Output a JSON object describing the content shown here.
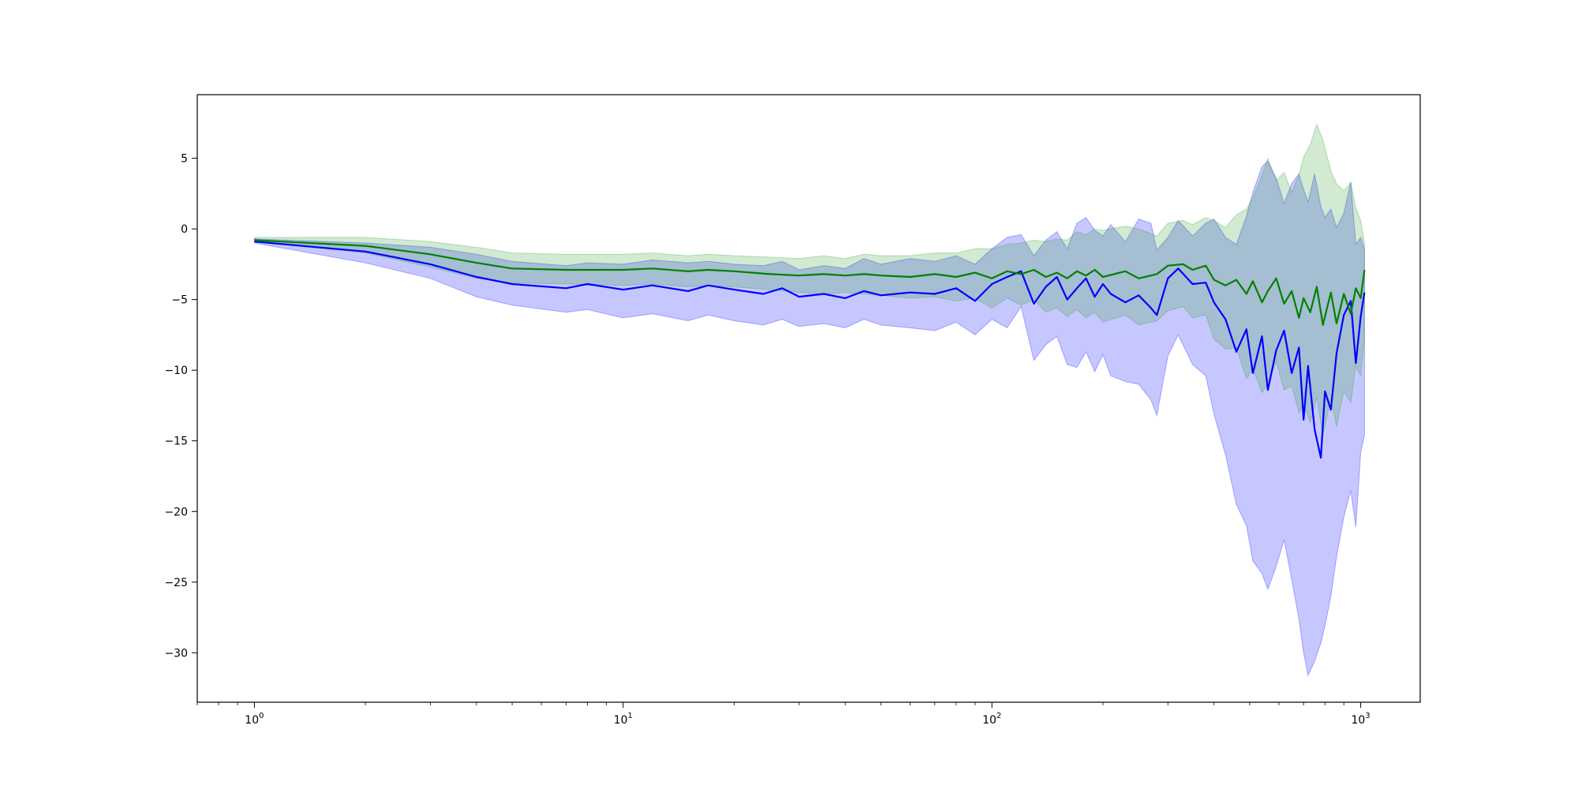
{
  "chart_data": {
    "type": "line",
    "title": "",
    "xlabel": "",
    "ylabel": "",
    "xscale": "log",
    "xlim": [
      0.7,
      1450
    ],
    "ylim": [
      -33.5,
      9.5
    ],
    "grid": false,
    "legend": "none",
    "x_ticks": [
      {
        "value": 1,
        "base": "10",
        "exp": "0"
      },
      {
        "value": 10,
        "base": "10",
        "exp": "1"
      },
      {
        "value": 100,
        "base": "10",
        "exp": "2"
      },
      {
        "value": 1000,
        "base": "10",
        "exp": "3"
      }
    ],
    "y_ticks": [
      {
        "value": 5,
        "label": "5"
      },
      {
        "value": 0,
        "label": "0"
      },
      {
        "value": -5,
        "label": "−5"
      },
      {
        "value": -10,
        "label": "−10"
      },
      {
        "value": -15,
        "label": "−15"
      },
      {
        "value": -20,
        "label": "−20"
      },
      {
        "value": -25,
        "label": "−25"
      },
      {
        "value": -30,
        "label": "−30"
      }
    ],
    "series": [
      {
        "color": "#0000ff",
        "band_color": "#0000ff",
        "points": [
          [
            1,
            -0.9,
            -1.0,
            -0.7
          ],
          [
            2,
            -1.6,
            -2.4,
            -1.0
          ],
          [
            3,
            -2.5,
            -3.5,
            -1.3
          ],
          [
            4,
            -3.4,
            -4.8,
            -1.8
          ],
          [
            5,
            -3.9,
            -5.4,
            -2.3
          ],
          [
            7,
            -4.2,
            -5.9,
            -2.6
          ],
          [
            8,
            -3.9,
            -5.7,
            -2.4
          ],
          [
            10,
            -4.3,
            -6.3,
            -2.5
          ],
          [
            12,
            -4.0,
            -6.0,
            -2.2
          ],
          [
            15,
            -4.4,
            -6.5,
            -2.4
          ],
          [
            17,
            -4.0,
            -6.1,
            -2.3
          ],
          [
            20,
            -4.3,
            -6.5,
            -2.5
          ],
          [
            24,
            -4.6,
            -6.8,
            -2.6
          ],
          [
            27,
            -4.2,
            -6.4,
            -2.3
          ],
          [
            30,
            -4.8,
            -6.9,
            -2.9
          ],
          [
            35,
            -4.6,
            -6.7,
            -2.6
          ],
          [
            40,
            -4.9,
            -7.0,
            -2.8
          ],
          [
            45,
            -4.4,
            -6.4,
            -2.1
          ],
          [
            50,
            -4.7,
            -6.8,
            -2.5
          ],
          [
            60,
            -4.5,
            -7.0,
            -2.1
          ],
          [
            70,
            -4.6,
            -7.2,
            -2.3
          ],
          [
            80,
            -4.2,
            -6.6,
            -1.9
          ],
          [
            90,
            -5.1,
            -7.5,
            -2.5
          ],
          [
            100,
            -3.9,
            -6.4,
            -1.4
          ],
          [
            110,
            -3.4,
            -7.0,
            -0.6
          ],
          [
            120,
            -3.0,
            -5.5,
            -0.4
          ],
          [
            130,
            -5.3,
            -9.3,
            -1.9
          ],
          [
            140,
            -4.1,
            -8.2,
            -0.8
          ],
          [
            150,
            -3.4,
            -7.6,
            -0.2
          ],
          [
            160,
            -5.0,
            -9.6,
            -1.4
          ],
          [
            170,
            -4.2,
            -9.8,
            0.4
          ],
          [
            180,
            -3.5,
            -8.7,
            0.8
          ],
          [
            190,
            -4.8,
            -10.1,
            -0.1
          ],
          [
            200,
            -3.9,
            -8.9,
            -0.5
          ],
          [
            210,
            -4.6,
            -10.4,
            0.3
          ],
          [
            230,
            -5.2,
            -10.8,
            -0.9
          ],
          [
            250,
            -4.7,
            -11.0,
            0.7
          ],
          [
            270,
            -5.6,
            -12.1,
            0.4
          ],
          [
            280,
            -6.1,
            -13.2,
            -1.5
          ],
          [
            300,
            -3.5,
            -9.0,
            -0.6
          ],
          [
            320,
            -2.8,
            -7.5,
            0.6
          ],
          [
            350,
            -3.9,
            -9.6,
            -0.5
          ],
          [
            380,
            -3.8,
            -10.4,
            0.4
          ],
          [
            400,
            -5.2,
            -13.1,
            0.7
          ],
          [
            430,
            -6.4,
            -16.0,
            -0.6
          ],
          [
            460,
            -8.7,
            -19.5,
            -1.1
          ],
          [
            490,
            -7.1,
            -21.0,
            0.9
          ],
          [
            510,
            -10.2,
            -23.5,
            2.6
          ],
          [
            540,
            -7.6,
            -24.4,
            4.4
          ],
          [
            560,
            -11.4,
            -25.5,
            4.8
          ],
          [
            590,
            -8.6,
            -23.9,
            3.6
          ],
          [
            620,
            -7.2,
            -22.0,
            1.8
          ],
          [
            650,
            -10.2,
            -24.8,
            3.2
          ],
          [
            680,
            -8.4,
            -27.6,
            3.9
          ],
          [
            700,
            -13.5,
            -30.0,
            2.8
          ],
          [
            720,
            -9.7,
            -31.6,
            1.9
          ],
          [
            750,
            -14.2,
            -30.6,
            3.9
          ],
          [
            780,
            -16.2,
            -29.3,
            1.6
          ],
          [
            800,
            -11.5,
            -28.1,
            0.8
          ],
          [
            830,
            -12.8,
            -26.0,
            1.4
          ],
          [
            860,
            -8.8,
            -23.2,
            0.1
          ],
          [
            900,
            -6.1,
            -20.4,
            1.1
          ],
          [
            940,
            -5.1,
            -18.5,
            3.3
          ],
          [
            970,
            -9.5,
            -21.1,
            -1.1
          ],
          [
            1000,
            -6.2,
            -15.8,
            -0.6
          ],
          [
            1024,
            -4.5,
            -14.6,
            -1.4
          ]
        ]
      },
      {
        "color": "#008000",
        "band_color": "#2ca02c",
        "points": [
          [
            1,
            -0.8,
            -0.9,
            -0.6
          ],
          [
            2,
            -1.2,
            -1.7,
            -0.6
          ],
          [
            3,
            -1.8,
            -2.7,
            -0.9
          ],
          [
            4,
            -2.4,
            -3.5,
            -1.3
          ],
          [
            5,
            -2.8,
            -3.8,
            -1.7
          ],
          [
            7,
            -2.9,
            -3.9,
            -1.8
          ],
          [
            10,
            -2.9,
            -4.0,
            -1.8
          ],
          [
            12,
            -2.8,
            -3.9,
            -1.7
          ],
          [
            15,
            -3.0,
            -4.1,
            -1.9
          ],
          [
            17,
            -2.9,
            -4.0,
            -1.8
          ],
          [
            20,
            -3.0,
            -4.1,
            -1.9
          ],
          [
            25,
            -3.2,
            -4.3,
            -2.0
          ],
          [
            30,
            -3.3,
            -4.5,
            -2.1
          ],
          [
            35,
            -3.2,
            -4.6,
            -1.9
          ],
          [
            40,
            -3.3,
            -4.5,
            -2.1
          ],
          [
            45,
            -3.2,
            -4.6,
            -1.8
          ],
          [
            50,
            -3.3,
            -4.7,
            -1.9
          ],
          [
            60,
            -3.4,
            -4.9,
            -1.9
          ],
          [
            70,
            -3.2,
            -4.8,
            -1.7
          ],
          [
            80,
            -3.4,
            -5.1,
            -1.7
          ],
          [
            90,
            -3.1,
            -4.9,
            -1.4
          ],
          [
            100,
            -3.5,
            -5.6,
            -1.4
          ],
          [
            110,
            -3.0,
            -4.9,
            -1.1
          ],
          [
            120,
            -3.2,
            -5.4,
            -1.0
          ],
          [
            130,
            -2.9,
            -5.0,
            -0.8
          ],
          [
            140,
            -3.4,
            -5.9,
            -0.9
          ],
          [
            150,
            -3.1,
            -5.6,
            -0.7
          ],
          [
            160,
            -3.5,
            -6.2,
            -0.8
          ],
          [
            170,
            -3.0,
            -5.7,
            -0.2
          ],
          [
            180,
            -3.3,
            -6.3,
            -0.4
          ],
          [
            190,
            -2.9,
            -5.9,
            0.0
          ],
          [
            200,
            -3.4,
            -6.6,
            -0.1
          ],
          [
            230,
            -3.0,
            -6.1,
            0.2
          ],
          [
            250,
            -3.5,
            -6.8,
            0.0
          ],
          [
            280,
            -3.2,
            -6.5,
            -0.5
          ],
          [
            300,
            -2.6,
            -5.8,
            0.4
          ],
          [
            330,
            -2.5,
            -5.5,
            0.6
          ],
          [
            350,
            -2.9,
            -6.3,
            0.3
          ],
          [
            380,
            -2.6,
            -6.1,
            0.8
          ],
          [
            400,
            -3.6,
            -7.8,
            0.6
          ],
          [
            430,
            -4.0,
            -8.5,
            0.1
          ],
          [
            460,
            -3.6,
            -8.4,
            1.0
          ],
          [
            490,
            -4.6,
            -10.6,
            1.4
          ],
          [
            510,
            -3.7,
            -9.9,
            2.2
          ],
          [
            540,
            -5.2,
            -11.6,
            3.8
          ],
          [
            560,
            -4.4,
            -10.9,
            5.0
          ],
          [
            590,
            -3.5,
            -9.4,
            3.4
          ],
          [
            620,
            -5.3,
            -11.4,
            4.0
          ],
          [
            650,
            -4.4,
            -11.1,
            2.6
          ],
          [
            680,
            -6.3,
            -13.0,
            3.8
          ],
          [
            700,
            -4.9,
            -12.4,
            5.1
          ],
          [
            730,
            -5.9,
            -13.7,
            6.0
          ],
          [
            760,
            -4.1,
            -11.9,
            7.4
          ],
          [
            790,
            -6.8,
            -14.6,
            6.3
          ],
          [
            830,
            -4.5,
            -12.0,
            4.1
          ],
          [
            860,
            -6.7,
            -14.0,
            3.2
          ],
          [
            900,
            -4.6,
            -11.5,
            2.7
          ],
          [
            940,
            -6.0,
            -12.3,
            3.3
          ],
          [
            970,
            -4.2,
            -9.7,
            1.5
          ],
          [
            1000,
            -4.9,
            -10.4,
            0.6
          ],
          [
            1024,
            -2.9,
            -7.6,
            -1.0
          ]
        ]
      }
    ]
  }
}
